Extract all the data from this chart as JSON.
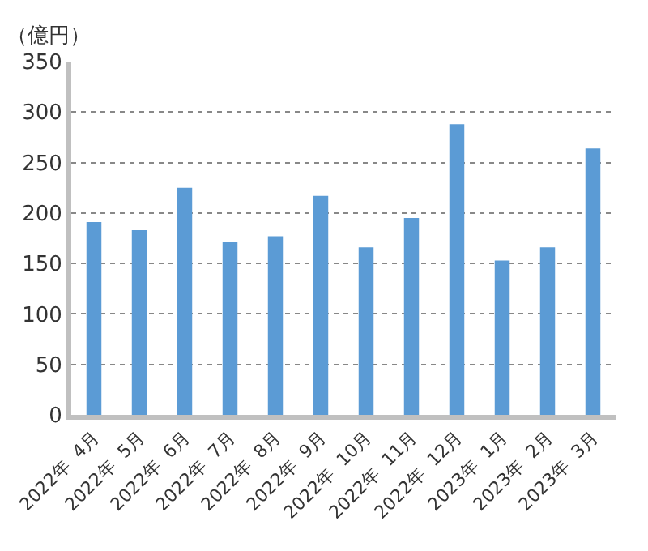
{
  "chart_data": {
    "type": "bar",
    "ylabel": "（億円）",
    "categories": [
      "2022年  4月",
      "2022年  5月",
      "2022年  6月",
      "2022年  7月",
      "2022年  8月",
      "2022年  9月",
      "2022年  10月",
      "2022年  11月",
      "2022年  12月",
      "2023年  1月",
      "2023年  2月",
      "2023年  3月"
    ],
    "values": [
      191,
      183,
      225,
      171,
      177,
      217,
      166,
      195,
      288,
      153,
      166,
      264
    ],
    "color": "#5b9bd5",
    "ylim": [
      0,
      350
    ],
    "yticks": [
      0,
      50,
      100,
      150,
      200,
      250,
      300,
      350
    ],
    "grid": "y",
    "legend": false
  }
}
